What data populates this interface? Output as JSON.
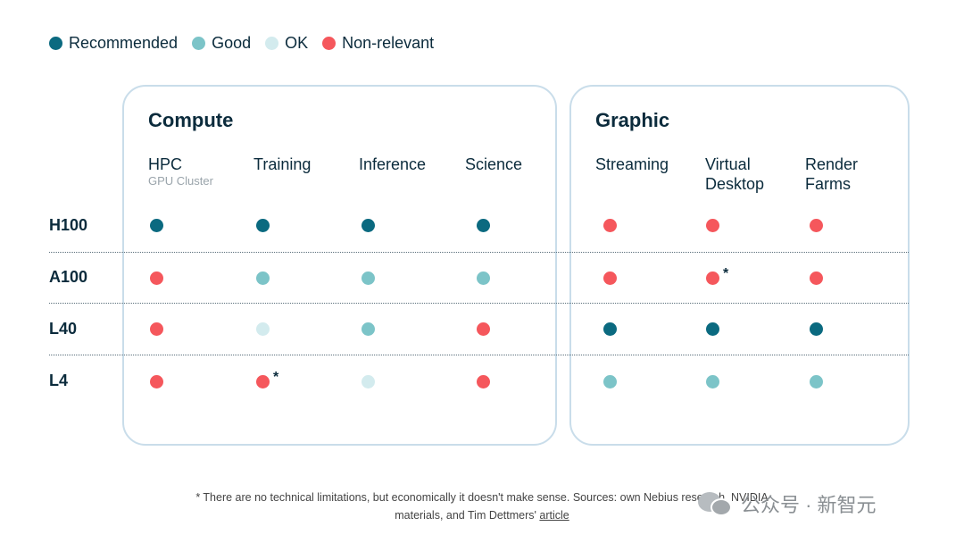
{
  "legend": [
    {
      "label": "Recommended",
      "color": "#0b6a80"
    },
    {
      "label": "Good",
      "color": "#7cc4c8"
    },
    {
      "label": "OK",
      "color": "#d3ebee"
    },
    {
      "label": "Non-relevant",
      "color": "#f5575c"
    }
  ],
  "chart_data": {
    "type": "table",
    "groups": [
      {
        "title": "Compute",
        "columns": [
          "HPC",
          "Training",
          "Inference",
          "Science"
        ]
      },
      {
        "title": "Graphic",
        "columns": [
          "Streaming",
          "Virtual Desktop",
          "Render Farms"
        ]
      }
    ],
    "column_subtitles": {
      "HPC": "GPU Cluster"
    },
    "rows": [
      "H100",
      "A100",
      "L40",
      "L4"
    ],
    "ratings": [
      [
        "Recommended",
        "Recommended",
        "Recommended",
        "Recommended",
        "Non-relevant",
        "Non-relevant",
        "Non-relevant"
      ],
      [
        "Non-relevant",
        "Good",
        "Good",
        "Good",
        "Non-relevant",
        "Non-relevant",
        "Non-relevant"
      ],
      [
        "Non-relevant",
        "OK",
        "Good",
        "Non-relevant",
        "Recommended",
        "Recommended",
        "Recommended"
      ],
      [
        "Non-relevant",
        "Non-relevant",
        "OK",
        "Non-relevant",
        "Good",
        "Good",
        "Good"
      ]
    ],
    "asterisks": [
      {
        "row": "A100",
        "column": "Virtual Desktop"
      },
      {
        "row": "L4",
        "column": "Training"
      }
    ]
  },
  "labels": {
    "compute_title": "Compute",
    "graphic_title": "Graphic",
    "hpc": "HPC",
    "hpc_sub": "GPU Cluster",
    "training": "Training",
    "inference": "Inference",
    "science": "Science",
    "streaming": "Streaming",
    "virtual_desktop": "Virtual\nDesktop",
    "render_farms": "Render\nFarms",
    "row_h100": "H100",
    "row_a100": "A100",
    "row_l40": "L40",
    "row_l4": "L4",
    "asterisk": "*"
  },
  "footnote": {
    "line1": "* There are no technical limitations, but economically it doesn't make sense. Sources: own Nebius research, NVIDIA",
    "line2_prefix": "materials, and Tim Dettmers'",
    "link": "article"
  },
  "watermark": {
    "text": "公众号 · 新智元"
  }
}
